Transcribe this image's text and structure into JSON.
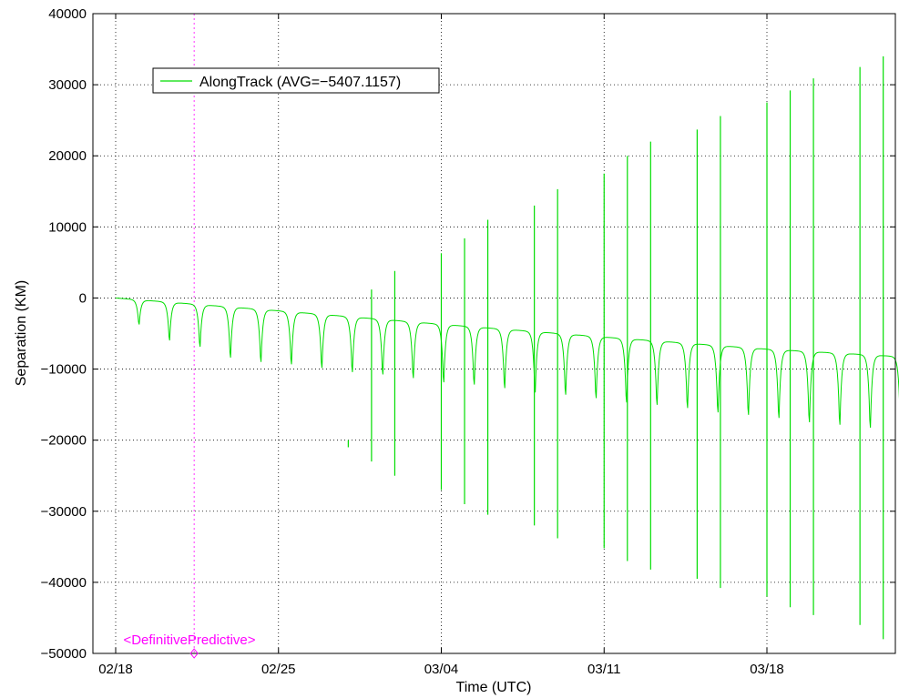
{
  "chart_data": {
    "type": "line",
    "xlabel": "Time (UTC)",
    "ylabel": "Separation (KM)",
    "x_axis_type": "date",
    "xlim": [
      "2025-02-18",
      "2025-03-25"
    ],
    "ylim": [
      -50000,
      40000
    ],
    "x_ticks": [
      "02/18",
      "02/25",
      "03/04",
      "03/11",
      "03/18"
    ],
    "x_tick_dates": [
      "2025-02-18",
      "2025-02-25",
      "2025-03-04",
      "2025-03-11",
      "2025-03-18"
    ],
    "y_ticks": [
      40000,
      30000,
      20000,
      10000,
      0,
      -10000,
      -20000,
      -30000,
      -40000,
      -50000
    ],
    "grid": true,
    "legend_position": "top-left",
    "series": [
      {
        "name": "AlongTrack (AVG=−5407.1157)",
        "color": "#00dd00",
        "orbit_period_days": 1.31,
        "baseline": {
          "x": [
            "2025-02-18",
            "2025-02-25",
            "2025-03-04",
            "2025-03-11",
            "2025-03-18",
            "2025-03-24"
          ],
          "y": [
            0,
            -1800,
            -3700,
            -5500,
            -7200,
            -8300
          ]
        },
        "dips": {
          "x": [
            "2025-02-19",
            "2025-02-20",
            "2025-02-22",
            "2025-02-23",
            "2025-02-24",
            "2025-02-26",
            "2025-02-27",
            "2025-02-28",
            "2025-03-02",
            "2025-03-03",
            "2025-03-04",
            "2025-03-06",
            "2025-03-07",
            "2025-03-08",
            "2025-03-10",
            "2025-03-11",
            "2025-03-12",
            "2025-03-14",
            "2025-03-15",
            "2025-03-16",
            "2025-03-18",
            "2025-03-19",
            "2025-03-20",
            "2025-03-22",
            "2025-03-23",
            "2025-03-24"
          ],
          "y": [
            -4200,
            -6500,
            -8000,
            -9500,
            -10000,
            -10500,
            -11000,
            -11500,
            -12000,
            -12500,
            -13000,
            -13500,
            -14000,
            -14500,
            -15000,
            -15500,
            -16000,
            -16500,
            -17000,
            -17500,
            -18000,
            -18500,
            -19000,
            -19500,
            -20000,
            -20500
          ]
        },
        "spike_peaks": {
          "x": [
            "2025-02-20",
            "2025-02-22",
            "2025-02-23",
            "2025-02-25",
            "2025-02-26",
            "2025-02-28",
            "2025-03-01",
            "2025-03-02",
            "2025-03-04",
            "2025-03-05",
            "2025-03-06",
            "2025-03-08",
            "2025-03-09",
            "2025-03-11",
            "2025-03-12",
            "2025-03-13",
            "2025-03-15",
            "2025-03-16",
            "2025-03-18",
            "2025-03-19",
            "2025-03-20",
            "2025-03-22",
            "2025-03-23"
          ],
          "y": [
            -8200,
            -11300,
            -14200,
            -16500,
            -18800,
            -20000,
            1200,
            3800,
            6300,
            8400,
            11000,
            13000,
            15300,
            17500,
            20000,
            22000,
            23700,
            25600,
            27500,
            29200,
            30900,
            32500,
            34000
          ]
        },
        "spike_troughs": {
          "x": [
            "2025-02-20",
            "2025-02-22",
            "2025-02-23",
            "2025-02-25",
            "2025-02-26",
            "2025-02-28",
            "2025-03-01",
            "2025-03-02",
            "2025-03-04",
            "2025-03-05",
            "2025-03-06",
            "2025-03-08",
            "2025-03-09",
            "2025-03-11",
            "2025-03-12",
            "2025-03-13",
            "2025-03-15",
            "2025-03-16",
            "2025-03-18",
            "2025-03-19",
            "2025-03-20",
            "2025-03-22",
            "2025-03-23"
          ],
          "y": [
            -8200,
            -11300,
            -14200,
            -16500,
            -18800,
            -21000,
            -23000,
            -25000,
            -27000,
            -29000,
            -30500,
            -32000,
            -33800,
            -35200,
            -37000,
            -38200,
            -39500,
            -40800,
            -42000,
            -43500,
            -44600,
            -46000,
            -48000
          ]
        }
      }
    ],
    "annotations": {
      "boundary_label": "<DefinitivePredictive>",
      "boundary_date": "2025-02-22",
      "boundary_color": "#ff00ff"
    }
  }
}
